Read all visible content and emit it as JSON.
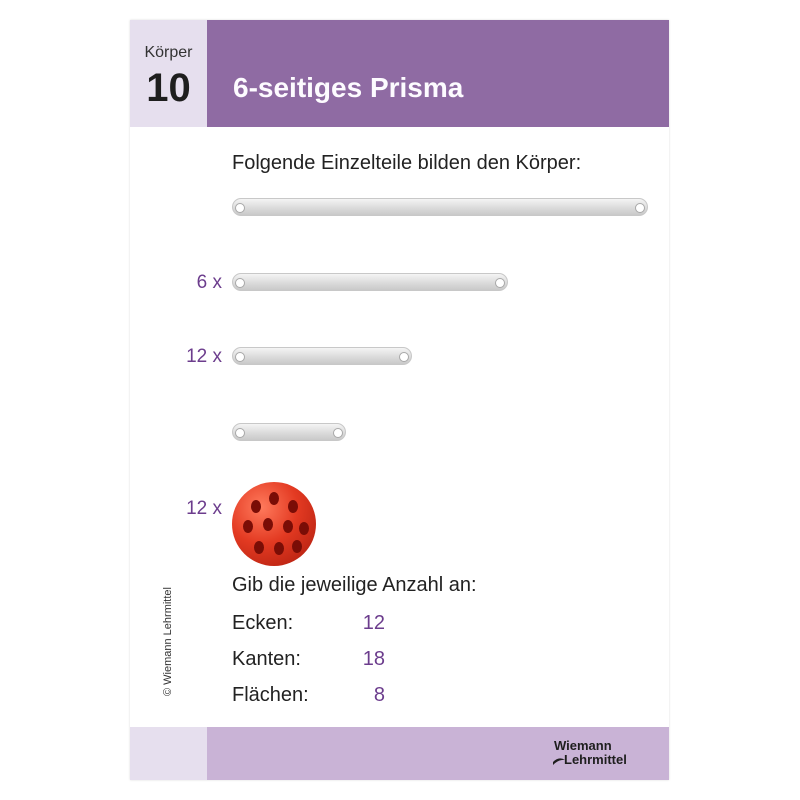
{
  "header": {
    "koerper_label": "Körper",
    "koerper_number": "10",
    "title": "6-seitiges Prisma",
    "colors": {
      "dark_purple": "#8f6ba3",
      "light_purple": "#e6dfee",
      "accent_text": "#6c3d8d"
    }
  },
  "parts": {
    "heading": "Folgende Einzelteile bilden den Körper:",
    "items": [
      {
        "quantity": "",
        "name": "long-rod"
      },
      {
        "quantity": "6 x",
        "name": "medium-rod"
      },
      {
        "quantity": "12 x",
        "name": "short-rod"
      },
      {
        "quantity": "",
        "name": "shortest-rod"
      },
      {
        "quantity": "12 x",
        "name": "connector-ball"
      }
    ]
  },
  "questions": {
    "heading": "Gib die jeweilige Anzahl an:",
    "rows": [
      {
        "label": "Ecken:",
        "value": "12"
      },
      {
        "label": "Kanten:",
        "value": "18"
      },
      {
        "label": "Flächen:",
        "value": "8"
      }
    ]
  },
  "footer": {
    "copyright": "© Wiemann Lehrmittel",
    "logo_line1": "Wiemann",
    "logo_line2": "Lehrmittel"
  }
}
